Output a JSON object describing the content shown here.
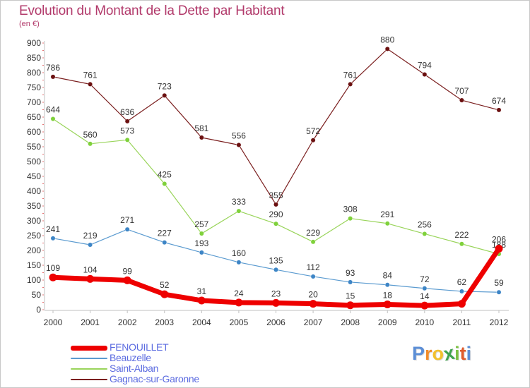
{
  "title": "Evolution du Montant de la Dette par Habitant",
  "subtitle": "(en €)",
  "logo": {
    "letters": [
      "P",
      "r",
      "o",
      "x",
      "i",
      "t",
      "i"
    ],
    "colors": [
      "#5b8ed6",
      "#f28c28",
      "#f2c12e",
      "#3fa34d",
      "#7cc242",
      "#e05a2b",
      "#5b8ed6"
    ]
  },
  "chart_data": {
    "type": "line",
    "x": [
      "2000",
      "2001",
      "2002",
      "2003",
      "2004",
      "2005",
      "2006",
      "2007",
      "2008",
      "2009",
      "2010",
      "2011",
      "2012"
    ],
    "ylim": [
      0,
      900
    ],
    "yticks": [
      0,
      50,
      100,
      150,
      200,
      250,
      300,
      350,
      400,
      450,
      500,
      550,
      600,
      650,
      700,
      750,
      800,
      850,
      900
    ],
    "grid": false,
    "legend_position": "bottom-left",
    "series": [
      {
        "name": "Gagnac-sur-Garonne",
        "color": "#7b1f1f",
        "marker": "#6b1010",
        "width": 1.2,
        "values": [
          786,
          761,
          636,
          723,
          581,
          556,
          355,
          572,
          761,
          880,
          794,
          707,
          674
        ]
      },
      {
        "name": "Saint-Alban",
        "color": "#99d45a",
        "marker": "#7fd13b",
        "width": 1.2,
        "values": [
          644,
          560,
          573,
          425,
          257,
          333,
          290,
          229,
          308,
          291,
          256,
          222,
          188
        ]
      },
      {
        "name": "Beauzelle",
        "color": "#5b9bd0",
        "marker": "#3d85c6",
        "width": 1.2,
        "values": [
          241,
          219,
          271,
          227,
          193,
          160,
          135,
          112,
          93,
          84,
          72,
          62,
          59
        ]
      },
      {
        "name": "FENOUILLET",
        "color": "#ee0000",
        "marker": "#ee0000",
        "width": 7,
        "values": [
          109,
          104,
          99,
          52,
          31,
          24,
          23,
          20,
          15,
          18,
          14,
          20,
          206
        ]
      }
    ],
    "data_labels": {
      "Gagnac-sur-Garonne": [
        "786",
        "761",
        "636",
        "723",
        "581",
        "556",
        "355",
        "572",
        "761",
        "880",
        "794",
        "707",
        "674"
      ],
      "Saint-Alban": [
        "644",
        "560",
        "573",
        "425",
        "257",
        "333",
        "290",
        "229",
        "308",
        "291",
        "256",
        "222",
        "188"
      ],
      "Beauzelle": [
        "241",
        "219",
        "271",
        "227",
        "193",
        "160",
        "135",
        "112",
        "93",
        "84",
        "72",
        "62",
        "59"
      ],
      "FENOUILLET": [
        "109",
        "104",
        "99",
        "52",
        "31",
        "24",
        "23",
        "20",
        "15",
        "18",
        "14",
        "",
        "206"
      ]
    }
  },
  "legend": [
    {
      "label": "FENOUILLET",
      "color": "#ee0000",
      "text_color": "#5b6be0",
      "thickness": 7
    },
    {
      "label": "Beauzelle",
      "color": "#5b9bd0",
      "text_color": "#5b6be0",
      "thickness": 2
    },
    {
      "label": "Saint-Alban",
      "color": "#99d45a",
      "text_color": "#5b6be0",
      "thickness": 2
    },
    {
      "label": "Gagnac-sur-Garonne",
      "color": "#7b1f1f",
      "text_color": "#5b6be0",
      "thickness": 2
    }
  ]
}
